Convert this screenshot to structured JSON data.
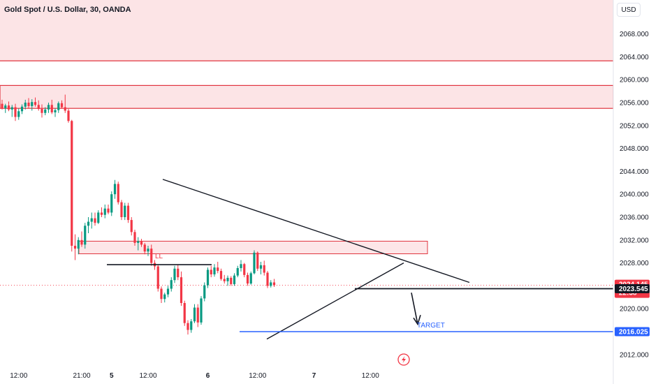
{
  "header": {
    "title": "Gold Spot / U.S. Dollar, 30, OANDA",
    "currency_button": "USD"
  },
  "chart_data": {
    "type": "candlestick",
    "title": "Gold Spot / U.S. Dollar, 30, OANDA",
    "y_axis": {
      "range": [
        2009,
        2073
      ],
      "ticks": [
        "2068.000",
        "2064.000",
        "2060.000",
        "2056.000",
        "2052.000",
        "2048.000",
        "2044.000",
        "2040.000",
        "2036.000",
        "2032.000",
        "2028.000",
        "2020.000",
        "2016.000",
        "2012.000"
      ]
    },
    "x_axis": {
      "ticks": [
        {
          "label": "12:00",
          "bold": false,
          "i": 5
        },
        {
          "label": "21:00",
          "bold": false,
          "i": 24
        },
        {
          "label": "5",
          "bold": true,
          "i": 33
        },
        {
          "label": "12:00",
          "bold": false,
          "i": 44
        },
        {
          "label": "6",
          "bold": true,
          "i": 62
        },
        {
          "label": "12:00",
          "bold": false,
          "i": 77
        },
        {
          "label": "7",
          "bold": true,
          "i": 94
        },
        {
          "label": "12:00",
          "bold": false,
          "i": 111
        }
      ]
    },
    "price_labels": [
      {
        "value": "2024.145",
        "sub": "22:38",
        "price": 2024.1,
        "color": "#f23645"
      },
      {
        "value": "2023.545",
        "price": 2023.5,
        "color": "#131722"
      },
      {
        "value": "2016.025",
        "price": 2016.0,
        "color": "#2962ff"
      }
    ],
    "candles": [
      [
        2055.8,
        2056.5,
        2054.8,
        2055.0
      ],
      [
        2055.0,
        2055.8,
        2054.2,
        2055.5
      ],
      [
        2055.5,
        2056.2,
        2054.5,
        2054.8
      ],
      [
        2054.8,
        2055.6,
        2053.5,
        2055.2
      ],
      [
        2055.2,
        2055.8,
        2052.8,
        2053.5
      ],
      [
        2053.5,
        2055.0,
        2053.0,
        2054.5
      ],
      [
        2054.5,
        2055.7,
        2054.0,
        2055.3
      ],
      [
        2055.3,
        2056.5,
        2054.8,
        2056.0
      ],
      [
        2056.0,
        2056.8,
        2055.0,
        2055.4
      ],
      [
        2055.4,
        2056.6,
        2054.6,
        2056.1
      ],
      [
        2056.1,
        2056.9,
        2055.3,
        2055.6
      ],
      [
        2055.6,
        2056.4,
        2054.6,
        2054.9
      ],
      [
        2054.9,
        2055.7,
        2053.4,
        2054.2
      ],
      [
        2054.2,
        2055.2,
        2053.8,
        2054.8
      ],
      [
        2054.8,
        2056.0,
        2054.2,
        2055.6
      ],
      [
        2055.6,
        2056.5,
        2054.0,
        2054.3
      ],
      [
        2054.3,
        2055.0,
        2053.5,
        2054.7
      ],
      [
        2054.7,
        2056.2,
        2054.2,
        2055.9
      ],
      [
        2055.9,
        2056.4,
        2055.0,
        2055.2
      ],
      [
        2055.2,
        2057.4,
        2054.2,
        2054.6
      ],
      [
        2054.6,
        2054.9,
        2052.5,
        2052.8
      ],
      [
        2052.8,
        2053.0,
        2030.0,
        2031.0
      ],
      [
        2031.0,
        2033.0,
        2028.5,
        2030.5
      ],
      [
        2030.5,
        2032.5,
        2029.5,
        2032.0
      ],
      [
        2032.0,
        2033.5,
        2030.8,
        2031.2
      ],
      [
        2031.2,
        2035.0,
        2030.5,
        2034.5
      ],
      [
        2034.5,
        2036.0,
        2033.2,
        2035.2
      ],
      [
        2035.2,
        2036.8,
        2034.0,
        2035.8
      ],
      [
        2035.8,
        2036.8,
        2034.5,
        2035.0
      ],
      [
        2035.0,
        2037.2,
        2034.8,
        2036.8
      ],
      [
        2036.8,
        2037.7,
        2036.0,
        2036.4
      ],
      [
        2036.4,
        2038.2,
        2035.8,
        2037.5
      ],
      [
        2037.5,
        2038.2,
        2036.5,
        2036.8
      ],
      [
        2036.8,
        2040.5,
        2036.2,
        2040.0
      ],
      [
        2040.0,
        2042.5,
        2039.2,
        2041.8
      ],
      [
        2041.8,
        2042.2,
        2038.2,
        2038.6
      ],
      [
        2038.6,
        2039.0,
        2035.5,
        2036.0
      ],
      [
        2036.0,
        2038.5,
        2035.5,
        2038.0
      ],
      [
        2038.0,
        2038.5,
        2035.0,
        2035.5
      ],
      [
        2035.5,
        2036.0,
        2032.8,
        2033.4
      ],
      [
        2033.4,
        2033.8,
        2031.0,
        2031.5
      ],
      [
        2031.5,
        2032.5,
        2030.2,
        2031.8
      ],
      [
        2031.8,
        2032.2,
        2030.8,
        2031.2
      ],
      [
        2031.2,
        2031.5,
        2029.5,
        2030.0
      ],
      [
        2030.0,
        2031.0,
        2029.2,
        2030.5
      ],
      [
        2030.5,
        2031.2,
        2027.5,
        2028.0
      ],
      [
        2028.0,
        2028.5,
        2026.8,
        2027.4
      ],
      [
        2027.4,
        2027.6,
        2023.0,
        2023.5
      ],
      [
        2023.5,
        2023.9,
        2021.0,
        2021.7
      ],
      [
        2021.7,
        2022.8,
        2021.1,
        2022.5
      ],
      [
        2022.5,
        2024.0,
        2022.0,
        2023.5
      ],
      [
        2023.5,
        2025.5,
        2023.0,
        2025.0
      ],
      [
        2025.0,
        2027.5,
        2024.5,
        2027.0
      ],
      [
        2027.0,
        2027.7,
        2025.0,
        2025.5
      ],
      [
        2025.5,
        2026.5,
        2020.5,
        2021.0
      ],
      [
        2021.0,
        2021.4,
        2017.0,
        2017.5
      ],
      [
        2017.5,
        2018.0,
        2015.5,
        2016.3
      ],
      [
        2016.3,
        2018.2,
        2015.8,
        2017.8
      ],
      [
        2017.8,
        2020.8,
        2017.5,
        2020.2
      ],
      [
        2020.2,
        2020.8,
        2016.8,
        2017.6
      ],
      [
        2017.6,
        2022.2,
        2017.2,
        2021.8
      ],
      [
        2021.8,
        2024.6,
        2021.3,
        2024.1
      ],
      [
        2024.1,
        2027.2,
        2023.6,
        2026.8
      ],
      [
        2026.8,
        2027.5,
        2025.5,
        2026.0
      ],
      [
        2026.0,
        2027.8,
        2025.6,
        2027.2
      ],
      [
        2027.2,
        2028.2,
        2026.2,
        2026.6
      ],
      [
        2026.6,
        2027.0,
        2024.9,
        2025.2
      ],
      [
        2025.2,
        2025.9,
        2024.4,
        2024.8
      ],
      [
        2024.8,
        2025.8,
        2024.0,
        2025.4
      ],
      [
        2025.4,
        2025.7,
        2024.0,
        2024.3
      ],
      [
        2024.3,
        2026.2,
        2024.0,
        2025.8
      ],
      [
        2025.8,
        2027.5,
        2025.5,
        2027.1
      ],
      [
        2027.1,
        2028.5,
        2026.5,
        2027.8
      ],
      [
        2027.8,
        2028.0,
        2025.5,
        2025.9
      ],
      [
        2025.9,
        2026.3,
        2024.0,
        2024.4
      ],
      [
        2024.4,
        2026.5,
        2024.2,
        2026.2
      ],
      [
        2026.2,
        2030.2,
        2026.0,
        2029.8
      ],
      [
        2029.8,
        2030.0,
        2026.6,
        2027.0
      ],
      [
        2027.0,
        2028.2,
        2026.0,
        2027.6
      ],
      [
        2027.6,
        2028.4,
        2025.8,
        2026.3
      ],
      [
        2026.3,
        2026.6,
        2023.6,
        2024.0
      ],
      [
        2024.0,
        2025.0,
        2023.7,
        2024.6
      ],
      [
        2024.6,
        2025.2,
        2023.8,
        2024.1
      ]
    ]
  },
  "annotations": {
    "ll_label": "LL",
    "target_label": "TARGET"
  }
}
